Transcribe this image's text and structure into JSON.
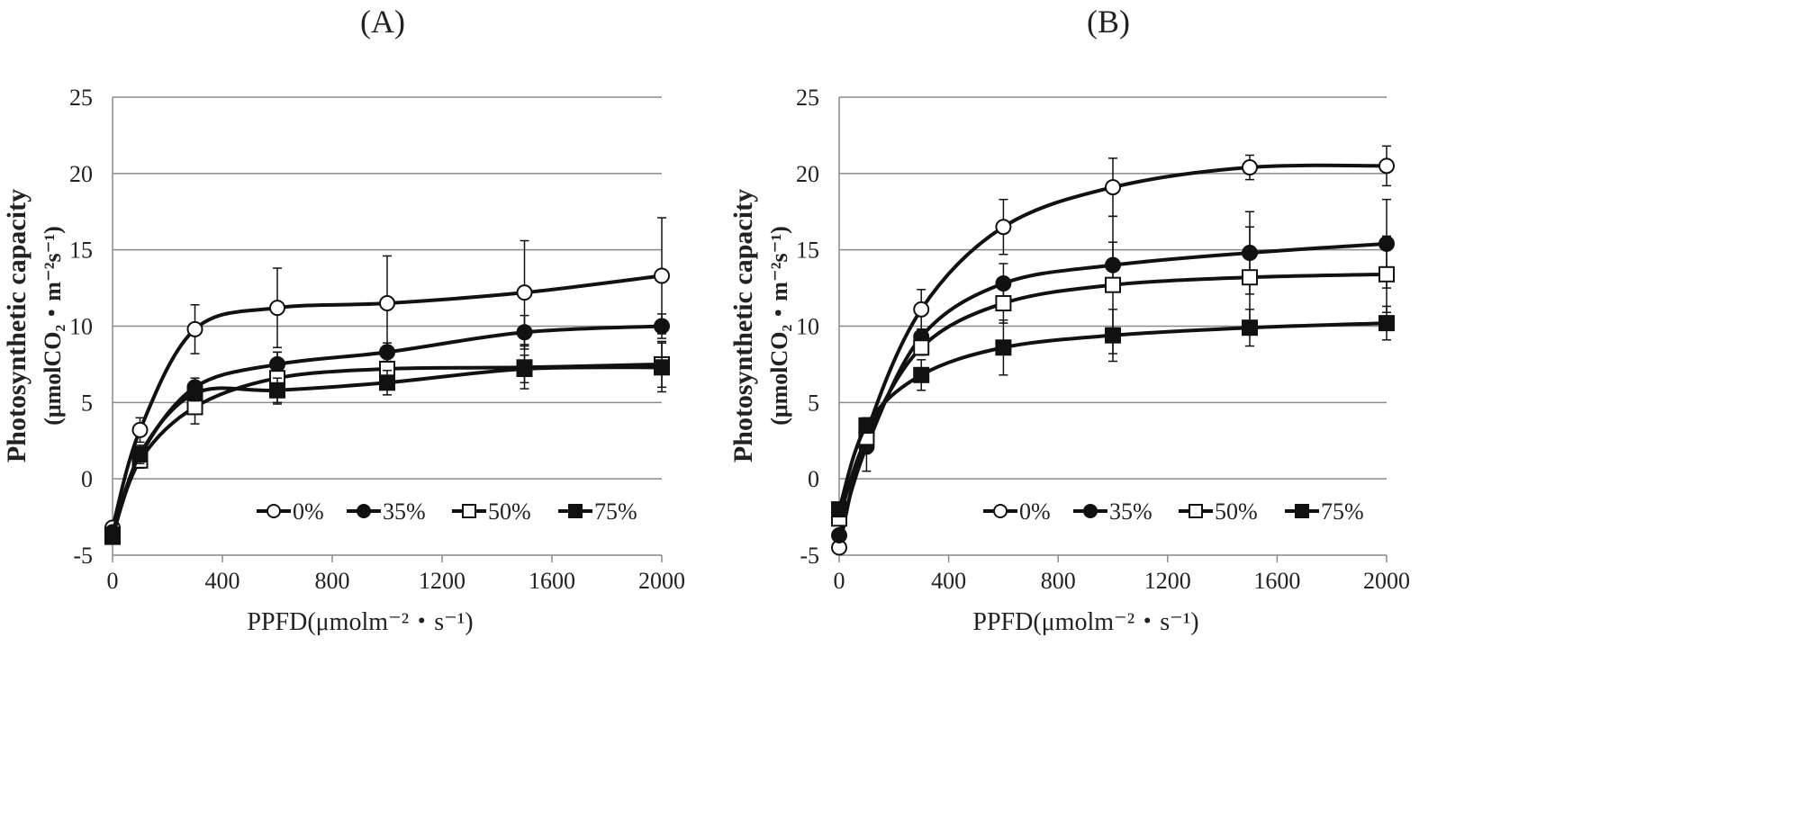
{
  "chart_data": [
    {
      "type": "line",
      "title": "(A)",
      "xlabel": "PPFD(μmolm⁻²・s⁻¹)",
      "ylabel": "Photosynthetic capacity",
      "ylabel_unit": "(μmolCO₂・m⁻²s⁻¹)",
      "xlim": [
        0,
        2000
      ],
      "ylim": [
        -5,
        25
      ],
      "xticks": [
        "0",
        "400",
        "800",
        "1200",
        "1600",
        "2000"
      ],
      "yticks": [
        "-5",
        "0",
        "5",
        "10",
        "15",
        "20",
        "25"
      ],
      "grid": "horizontal",
      "legend_position": "bottom-right",
      "x": [
        0,
        100,
        300,
        600,
        1000,
        1500,
        2000
      ],
      "series": [
        {
          "name": "0%",
          "marker": "open-circle",
          "values": [
            -3.2,
            3.2,
            9.8,
            11.2,
            11.5,
            12.2,
            13.3
          ],
          "errors": [
            0.4,
            0.8,
            1.6,
            2.6,
            3.1,
            3.4,
            3.8
          ]
        },
        {
          "name": "35%",
          "marker": "filled-circle",
          "values": [
            -3.5,
            1.5,
            6.0,
            7.5,
            8.3,
            9.6,
            10.0
          ],
          "errors": [
            0.3,
            0.6,
            0.6,
            0.8,
            0.6,
            1.1,
            0.8
          ]
        },
        {
          "name": "50%",
          "marker": "open-square",
          "values": [
            -3.7,
            1.2,
            4.7,
            6.6,
            7.2,
            7.3,
            7.5
          ],
          "errors": [
            0.3,
            0.5,
            1.1,
            1.7,
            1.3,
            1.4,
            1.5
          ]
        },
        {
          "name": "75%",
          "marker": "filled-square",
          "values": [
            -3.8,
            1.6,
            5.6,
            5.8,
            6.3,
            7.2,
            7.3
          ],
          "errors": [
            0.3,
            0.6,
            0.5,
            0.8,
            0.8,
            0.9,
            1.6
          ]
        }
      ]
    },
    {
      "type": "line",
      "title": "(B)",
      "xlabel": "PPFD(μmolm⁻²・s⁻¹)",
      "ylabel": "Photosynthetic capacity",
      "ylabel_unit": "(μmolCO₂・m⁻²s⁻¹)",
      "xlim": [
        0,
        2000
      ],
      "ylim": [
        -5,
        25
      ],
      "xticks": [
        "0",
        "400",
        "800",
        "1200",
        "1600",
        "2000"
      ],
      "yticks": [
        "-5",
        "0",
        "5",
        "10",
        "15",
        "20",
        "25"
      ],
      "grid": "horizontal",
      "legend_position": "bottom-right",
      "x": [
        0,
        100,
        300,
        600,
        1000,
        1500,
        2000
      ],
      "series": [
        {
          "name": "0%",
          "marker": "open-circle",
          "values": [
            -4.5,
            3.0,
            11.1,
            16.5,
            19.1,
            20.4,
            20.5
          ],
          "errors": [
            0.3,
            0.6,
            1.3,
            1.8,
            1.9,
            0.8,
            1.3
          ]
        },
        {
          "name": "35%",
          "marker": "filled-circle",
          "values": [
            -3.7,
            2.1,
            9.3,
            12.8,
            14.0,
            14.8,
            15.4
          ],
          "errors": [
            0.3,
            1.6,
            0.5,
            1.3,
            1.5,
            2.7,
            2.9
          ]
        },
        {
          "name": "50%",
          "marker": "open-square",
          "values": [
            -2.6,
            2.7,
            8.6,
            11.5,
            12.7,
            13.2,
            13.4
          ],
          "errors": [
            0.3,
            0.6,
            0.5,
            1.3,
            4.5,
            3.3,
            2.5
          ]
        },
        {
          "name": "75%",
          "marker": "filled-square",
          "values": [
            -2.0,
            3.5,
            6.8,
            8.6,
            9.4,
            9.9,
            10.2
          ],
          "errors": [
            0.3,
            0.5,
            1.0,
            1.8,
            1.7,
            1.2,
            1.1
          ]
        }
      ]
    }
  ]
}
